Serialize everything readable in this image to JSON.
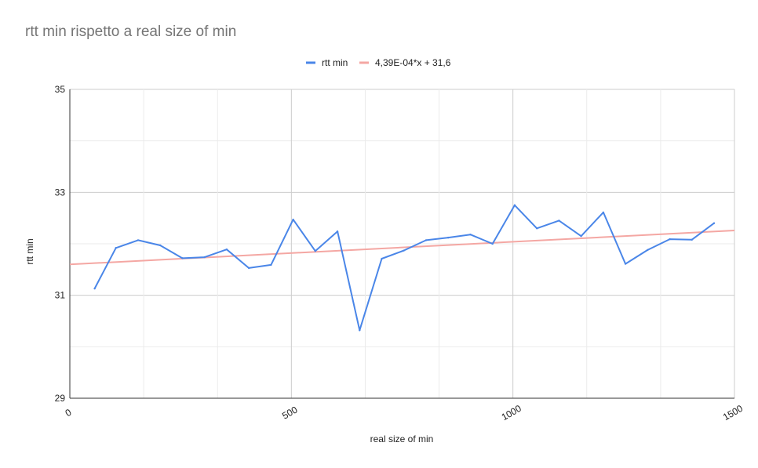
{
  "chart_data": {
    "type": "line",
    "title": "rtt min rispetto a real size of min",
    "xlabel": "real size of min",
    "ylabel": "rtt min",
    "xlim": [
      0,
      1500
    ],
    "ylim": [
      29,
      35
    ],
    "x_ticks": [
      0,
      500,
      1000,
      1500
    ],
    "y_ticks": [
      29,
      31,
      33,
      35
    ],
    "x_minor_step": 166.67,
    "y_minor_step": 1,
    "grid": true,
    "legend_position": "top",
    "series": [
      {
        "name": "rtt min",
        "color": "#4a86e8",
        "x": [
          56,
          104,
          154,
          204,
          254,
          304,
          354,
          404,
          454,
          504,
          554,
          604,
          654,
          704,
          754,
          804,
          854,
          904,
          954,
          1004,
          1054,
          1104,
          1154,
          1204,
          1254,
          1304,
          1354,
          1404,
          1454
        ],
        "values": [
          31.13,
          31.92,
          32.07,
          31.97,
          31.72,
          31.74,
          31.89,
          31.53,
          31.59,
          32.47,
          31.86,
          32.24,
          30.32,
          31.71,
          31.87,
          32.07,
          32.12,
          32.18,
          32.0,
          32.75,
          32.3,
          32.45,
          32.15,
          32.61,
          31.61,
          31.88,
          32.09,
          32.08,
          32.4
        ]
      }
    ],
    "trendline": {
      "name": "4,39E-04*x + 31,6",
      "color": "#f4a7a3",
      "slope": 0.000439,
      "intercept": 31.6
    }
  }
}
